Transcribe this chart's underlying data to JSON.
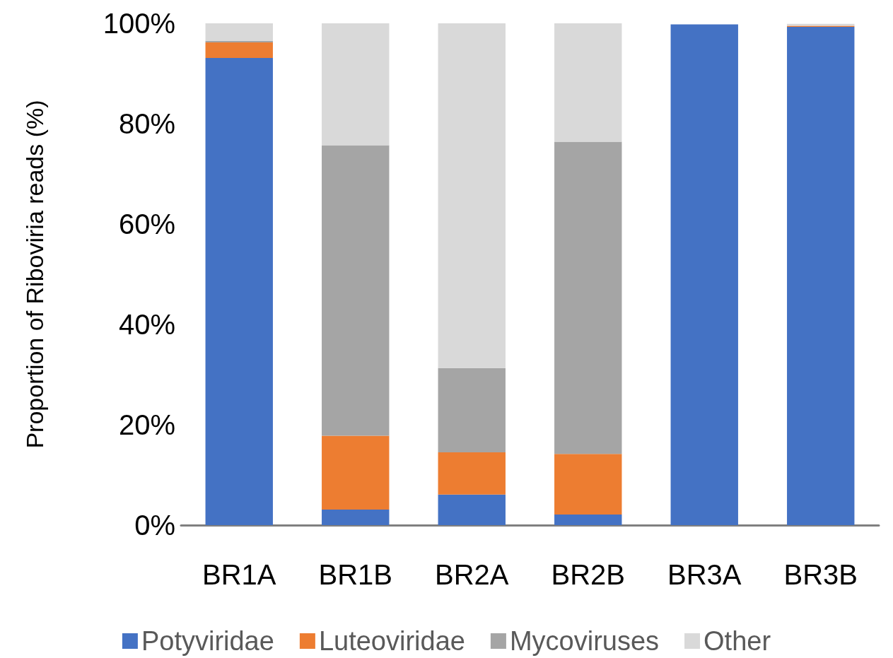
{
  "chart_data": {
    "type": "bar",
    "stacked": true,
    "ylabel": "Proportion of Riboviria reads (%)",
    "categories": [
      "BR1A",
      "BR1B",
      "BR2A",
      "BR2B",
      "BR3A",
      "BR3B"
    ],
    "series": [
      {
        "name": "Potyviridae",
        "color": "#4472c4",
        "values": [
          93.1,
          3.1,
          6.1,
          2.1,
          99.8,
          99.3
        ]
      },
      {
        "name": "Luteoviridae",
        "color": "#ed7d31",
        "values": [
          3.1,
          14.7,
          8.4,
          12.1,
          0,
          0.2
        ]
      },
      {
        "name": "Mycoviruses",
        "color": "#a5a5a5",
        "values": [
          0.3,
          57.9,
          16.8,
          62.2,
          0,
          null
        ]
      },
      {
        "name": "Other",
        "color": "#d9d9d9",
        "values": [
          3.5,
          24.3,
          68.7,
          23.6,
          null,
          0.4
        ]
      }
    ],
    "ylim": [
      0,
      100
    ],
    "yticks": [
      {
        "value": 0,
        "label": "0%"
      },
      {
        "value": 20,
        "label": "20%"
      },
      {
        "value": 40,
        "label": "40%"
      },
      {
        "value": 60,
        "label": "60%"
      },
      {
        "value": 80,
        "label": "80%"
      },
      {
        "value": 100,
        "label": "100%"
      }
    ],
    "grid": false,
    "legend": "bottom"
  }
}
